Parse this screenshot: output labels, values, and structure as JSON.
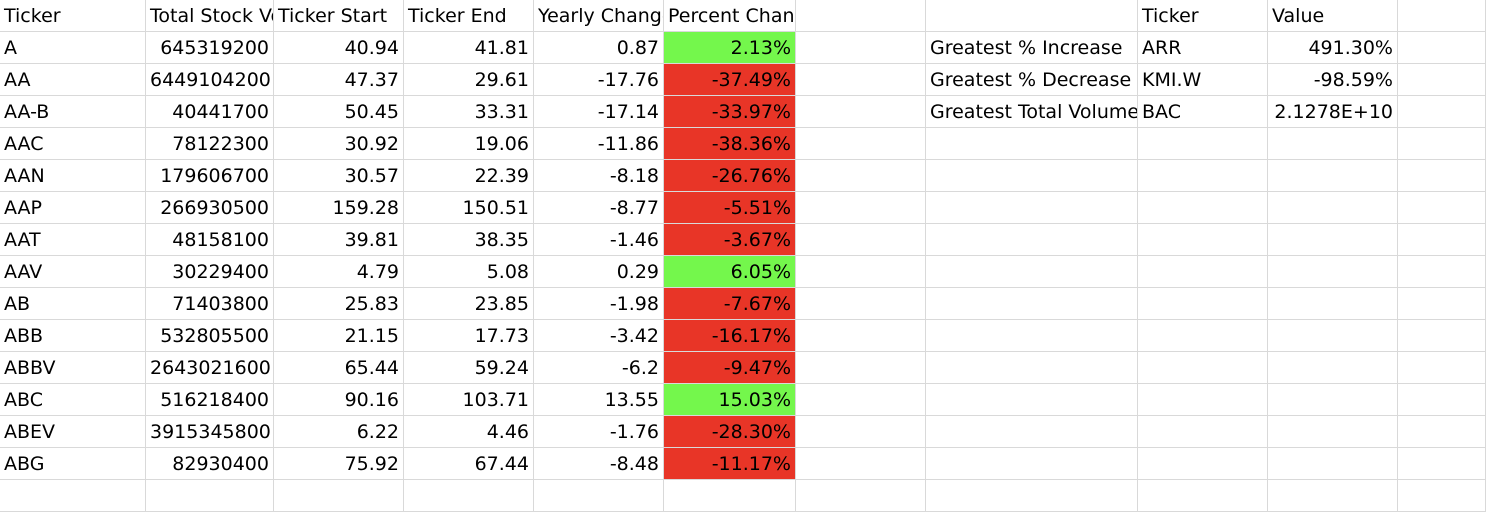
{
  "main_table": {
    "headers": [
      "Ticker",
      "Total Stock Volume",
      "Ticker Start",
      "Ticker End",
      "Yearly Change",
      "Percent Change"
    ],
    "rows": [
      {
        "ticker": "A",
        "volume": "645319200",
        "start": "40.94",
        "end": "41.81",
        "change": "0.87",
        "pct": "2.13%",
        "sign": "pos"
      },
      {
        "ticker": "AA",
        "volume": "6449104200",
        "start": "47.37",
        "end": "29.61",
        "change": "-17.76",
        "pct": "-37.49%",
        "sign": "neg"
      },
      {
        "ticker": "AA-B",
        "volume": "40441700",
        "start": "50.45",
        "end": "33.31",
        "change": "-17.14",
        "pct": "-33.97%",
        "sign": "neg"
      },
      {
        "ticker": "AAC",
        "volume": "78122300",
        "start": "30.92",
        "end": "19.06",
        "change": "-11.86",
        "pct": "-38.36%",
        "sign": "neg"
      },
      {
        "ticker": "AAN",
        "volume": "179606700",
        "start": "30.57",
        "end": "22.39",
        "change": "-8.18",
        "pct": "-26.76%",
        "sign": "neg"
      },
      {
        "ticker": "AAP",
        "volume": "266930500",
        "start": "159.28",
        "end": "150.51",
        "change": "-8.77",
        "pct": "-5.51%",
        "sign": "neg"
      },
      {
        "ticker": "AAT",
        "volume": "48158100",
        "start": "39.81",
        "end": "38.35",
        "change": "-1.46",
        "pct": "-3.67%",
        "sign": "neg"
      },
      {
        "ticker": "AAV",
        "volume": "30229400",
        "start": "4.79",
        "end": "5.08",
        "change": "0.29",
        "pct": "6.05%",
        "sign": "pos"
      },
      {
        "ticker": "AB",
        "volume": "71403800",
        "start": "25.83",
        "end": "23.85",
        "change": "-1.98",
        "pct": "-7.67%",
        "sign": "neg"
      },
      {
        "ticker": "ABB",
        "volume": "532805500",
        "start": "21.15",
        "end": "17.73",
        "change": "-3.42",
        "pct": "-16.17%",
        "sign": "neg"
      },
      {
        "ticker": "ABBV",
        "volume": "2643021600",
        "start": "65.44",
        "end": "59.24",
        "change": "-6.2",
        "pct": "-9.47%",
        "sign": "neg"
      },
      {
        "ticker": "ABC",
        "volume": "516218400",
        "start": "90.16",
        "end": "103.71",
        "change": "13.55",
        "pct": "15.03%",
        "sign": "pos"
      },
      {
        "ticker": "ABEV",
        "volume": "3915345800",
        "start": "6.22",
        "end": "4.46",
        "change": "-1.76",
        "pct": "-28.30%",
        "sign": "neg"
      },
      {
        "ticker": "ABG",
        "volume": "82930400",
        "start": "75.92",
        "end": "67.44",
        "change": "-8.48",
        "pct": "-11.17%",
        "sign": "neg"
      }
    ]
  },
  "summary_table": {
    "headers": [
      "Ticker",
      "Value"
    ],
    "rows": [
      {
        "label": "Greatest % Increase",
        "ticker": "ARR",
        "value": "491.30%"
      },
      {
        "label": "Greatest % Decrease",
        "ticker": "KMI.W",
        "value": "-98.59%"
      },
      {
        "label": "Greatest Total Volume",
        "ticker": "BAC",
        "value": "2.1278E+10"
      }
    ]
  },
  "colors": {
    "positive": "#74f74c",
    "negative": "#e83527",
    "gridline": "#d9d9d9"
  }
}
